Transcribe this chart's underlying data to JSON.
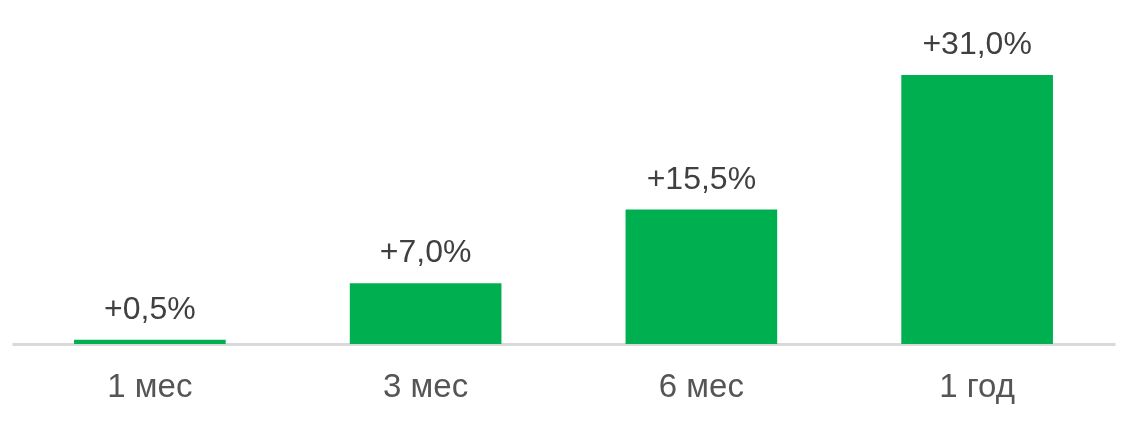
{
  "chart_data": {
    "type": "bar",
    "categories": [
      "1 мес",
      "3 мес",
      "6 мес",
      "1 год"
    ],
    "values": [
      0.5,
      7.0,
      15.5,
      31.0
    ],
    "color": "#00b050",
    "value_labels": [
      "+0,5%",
      "+7,0%",
      "+15,5%",
      "+31,0%"
    ],
    "grid": false
  }
}
